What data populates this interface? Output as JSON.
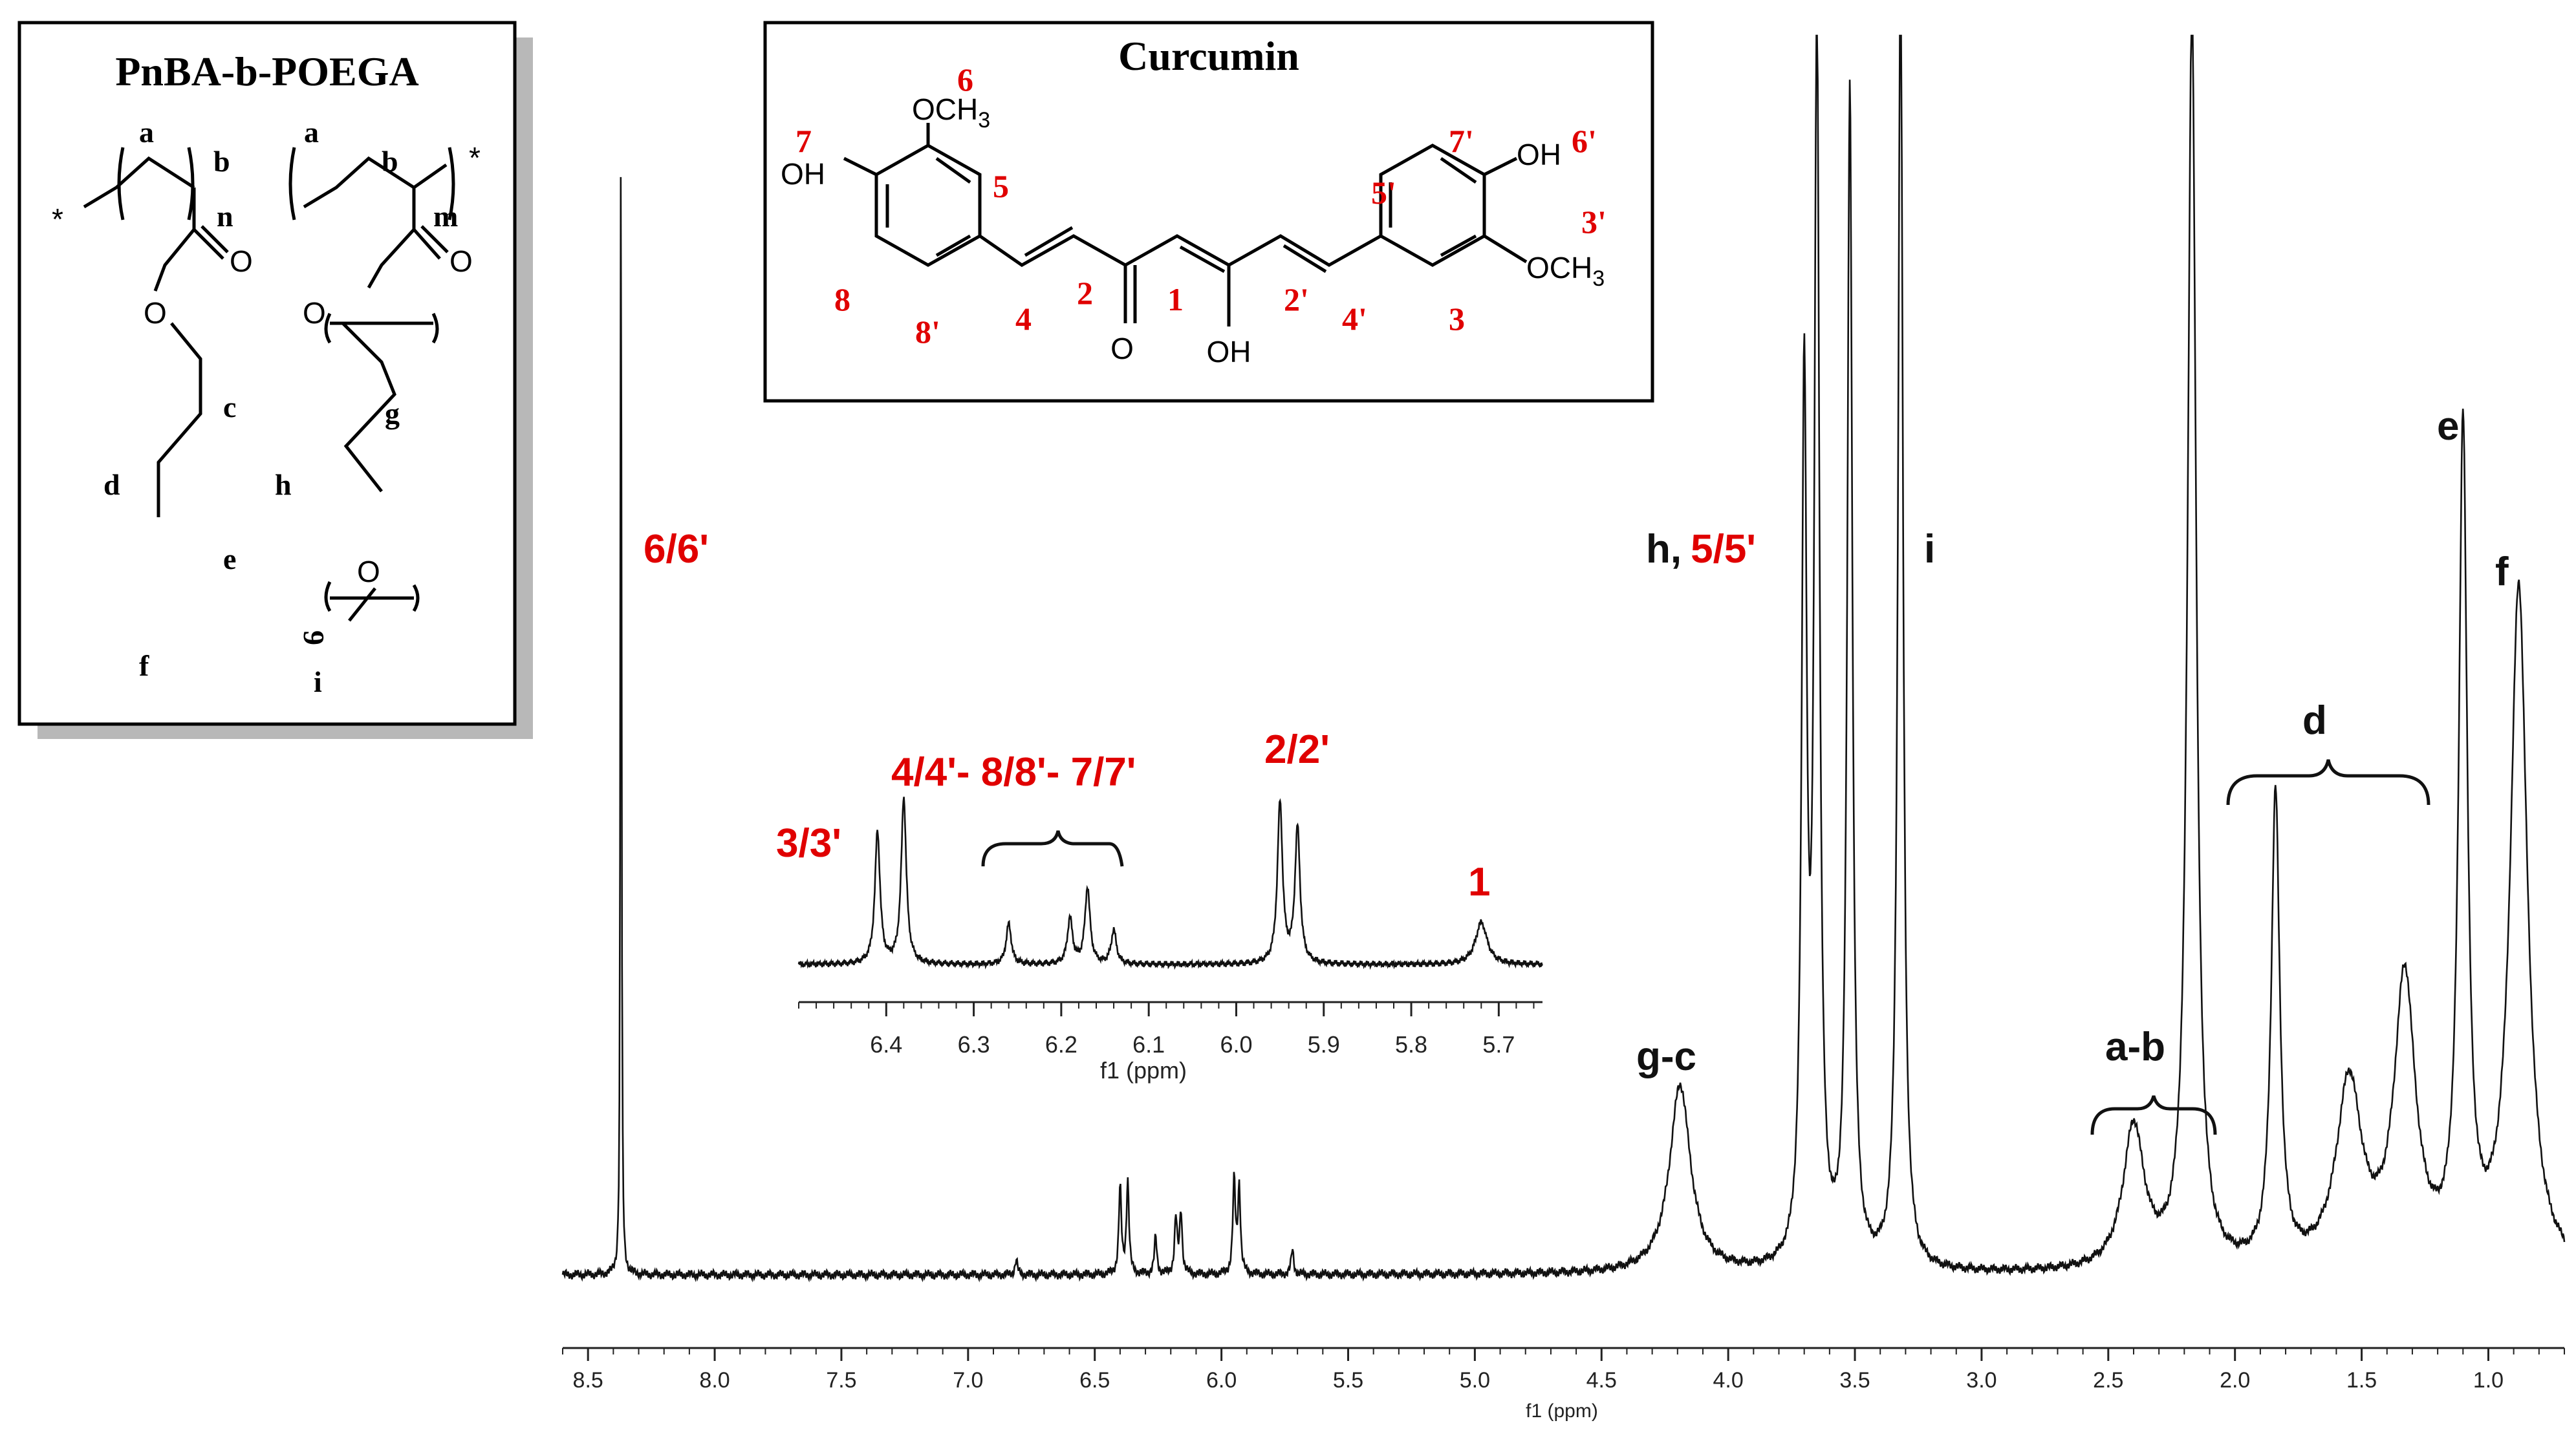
{
  "polymer_box": {
    "title": "PnBA-b-POEGA",
    "atom_labels": {
      "o_carbonyl": "O",
      "o_ester": "O",
      "o_ether": "O"
    },
    "letters": {
      "a": "a",
      "b": "b",
      "c": "c",
      "d": "d",
      "e": "e",
      "f": "f",
      "g": "g",
      "h": "h",
      "i": "i"
    },
    "subscripts": {
      "n": "n",
      "m": "m",
      "nine": "9"
    },
    "end_marks": "*"
  },
  "curcumin_box": {
    "title": "Curcumin",
    "groups": {
      "och3": "OCH",
      "och3_sub": "3",
      "oh": "OH",
      "o": "O"
    },
    "numbers": [
      "1",
      "2",
      "2'",
      "3",
      "3'",
      "4",
      "4'",
      "5",
      "5'",
      "6",
      "6'",
      "7",
      "7'",
      "8",
      "8'"
    ]
  },
  "peak_labels": [
    {
      "text": "6/6'",
      "color": "#e00000"
    },
    {
      "text": "h,",
      "color": "#111111"
    },
    {
      "text": "5/5'",
      "color": "#e00000"
    },
    {
      "text": "i",
      "color": "#111111"
    },
    {
      "text": "g-c",
      "color": "#111111"
    },
    {
      "text": "a-b",
      "color": "#111111"
    },
    {
      "text": "d",
      "color": "#111111"
    },
    {
      "text": "e",
      "color": "#111111"
    },
    {
      "text": "f",
      "color": "#111111"
    }
  ],
  "inset_labels": [
    {
      "text": "3/3'",
      "color": "#e00000"
    },
    {
      "text": "4/4'- 8/8'- 7/7'",
      "color": "#e00000"
    },
    {
      "text": "2/2'",
      "color": "#e00000"
    },
    {
      "text": "1",
      "color": "#e00000"
    }
  ],
  "chart_data": [
    {
      "type": "line",
      "title": "",
      "xlabel": "f1 (ppm)",
      "ylabel": "",
      "xlim": [
        8.6,
        0.7
      ],
      "x_reversed": true,
      "x_ticks": [
        "8.5",
        "8.0",
        "7.5",
        "7.0",
        "6.5",
        "6.0",
        "5.5",
        "5.0",
        "4.5",
        "4.0",
        "3.5",
        "3.0",
        "2.5",
        "2.0",
        "1.5",
        "1.0"
      ],
      "grid": false,
      "peaks": [
        {
          "ppm": 8.37,
          "height": 1.0,
          "label": "6/6'"
        },
        {
          "ppm": 6.81,
          "height": 0.012
        },
        {
          "ppm": 6.4,
          "height": 0.07
        },
        {
          "ppm": 6.37,
          "height": 0.075
        },
        {
          "ppm": 6.26,
          "height": 0.03
        },
        {
          "ppm": 6.18,
          "height": 0.045
        },
        {
          "ppm": 6.16,
          "height": 0.05
        },
        {
          "ppm": 5.95,
          "height": 0.075
        },
        {
          "ppm": 5.93,
          "height": 0.07
        },
        {
          "ppm": 5.72,
          "height": 0.02
        },
        {
          "ppm": 4.19,
          "height": 0.152,
          "label": "g-c"
        },
        {
          "ppm": 3.7,
          "height": 0.7,
          "label": "h, 5/5'"
        },
        {
          "ppm": 3.65,
          "height": 0.99
        },
        {
          "ppm": 3.52,
          "height": 0.95
        },
        {
          "ppm": 3.32,
          "height": 1.05,
          "label": "i"
        },
        {
          "ppm": 2.4,
          "height": 0.115,
          "label": "a-b"
        },
        {
          "ppm": 2.17,
          "height": 1.02
        },
        {
          "ppm": 1.84,
          "height": 0.38
        },
        {
          "ppm": 1.55,
          "height": 0.148,
          "label": "d"
        },
        {
          "ppm": 1.33,
          "height": 0.23
        },
        {
          "ppm": 1.1,
          "height": 0.67,
          "label": "e"
        },
        {
          "ppm": 0.88,
          "height": 0.55,
          "label": "f"
        }
      ]
    },
    {
      "type": "line",
      "title": "",
      "xlabel": "f1 (ppm)",
      "ylabel": "",
      "xlim": [
        6.5,
        5.65
      ],
      "x_reversed": true,
      "x_ticks": [
        "6.4",
        "6.3",
        "6.2",
        "6.1",
        "6.0",
        "5.9",
        "5.8",
        "5.7"
      ],
      "grid": false,
      "peaks": [
        {
          "ppm": 6.41,
          "height": 0.78,
          "label": "3/3'"
        },
        {
          "ppm": 6.38,
          "height": 0.98,
          "label": "4/4'- 8/8'- 7/7'"
        },
        {
          "ppm": 6.26,
          "height": 0.24
        },
        {
          "ppm": 6.19,
          "height": 0.27
        },
        {
          "ppm": 6.17,
          "height": 0.45
        },
        {
          "ppm": 6.14,
          "height": 0.2
        },
        {
          "ppm": 5.95,
          "height": 0.95,
          "label": "2/2'"
        },
        {
          "ppm": 5.93,
          "height": 0.8
        },
        {
          "ppm": 5.72,
          "height": 0.25,
          "label": "1"
        }
      ]
    }
  ]
}
